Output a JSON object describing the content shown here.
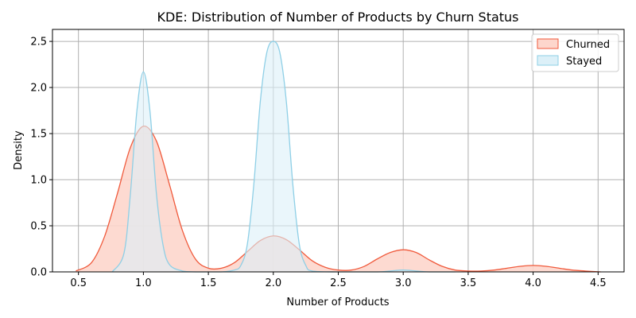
{
  "chart_data": {
    "type": "area",
    "title": "KDE: Distribution of Number of Products by Churn Status",
    "xlabel": "Number of Products",
    "ylabel": "Density",
    "xlim": [
      0.3,
      4.7
    ],
    "ylim": [
      0,
      2.63
    ],
    "xticks": [
      "0.5",
      "1.0",
      "1.5",
      "2.0",
      "2.5",
      "3.0",
      "3.5",
      "4.0",
      "4.5"
    ],
    "yticks": [
      "0.0",
      "0.5",
      "1.0",
      "1.5",
      "2.0",
      "2.5"
    ],
    "grid": true,
    "legend_position": "top-right",
    "series": [
      {
        "name": "Churned",
        "color": "#f05a3c",
        "fill": "#fdd6cc",
        "x": [
          0.48,
          0.6,
          0.7,
          0.8,
          0.9,
          1.0,
          1.1,
          1.2,
          1.3,
          1.4,
          1.5,
          1.6,
          1.7,
          1.8,
          1.9,
          2.0,
          2.1,
          2.2,
          2.3,
          2.4,
          2.5,
          2.6,
          2.7,
          2.8,
          2.9,
          3.0,
          3.1,
          3.2,
          3.3,
          3.4,
          3.5,
          3.6,
          3.7,
          3.8,
          3.9,
          4.0,
          4.1,
          4.2,
          4.3,
          4.4,
          4.52
        ],
        "y": [
          0.01,
          0.1,
          0.38,
          0.85,
          1.35,
          1.58,
          1.42,
          0.95,
          0.45,
          0.14,
          0.04,
          0.04,
          0.1,
          0.22,
          0.34,
          0.39,
          0.35,
          0.24,
          0.12,
          0.05,
          0.02,
          0.02,
          0.06,
          0.14,
          0.21,
          0.24,
          0.21,
          0.13,
          0.06,
          0.02,
          0.01,
          0.01,
          0.02,
          0.04,
          0.06,
          0.07,
          0.06,
          0.04,
          0.02,
          0.01,
          0.0
        ]
      },
      {
        "name": "Stayed",
        "color": "#8ecfe6",
        "fill": "#dcf0f8",
        "x": [
          0.76,
          0.85,
          0.9,
          0.95,
          1.0,
          1.05,
          1.1,
          1.15,
          1.2,
          1.3,
          1.4,
          1.5,
          1.6,
          1.7,
          1.75,
          1.8,
          1.85,
          1.9,
          1.95,
          2.0,
          2.05,
          2.1,
          2.15,
          2.2,
          2.25,
          2.3,
          2.5,
          2.8,
          2.9,
          3.0,
          3.1,
          3.2,
          3.4
        ],
        "y": [
          0.0,
          0.2,
          0.85,
          1.75,
          2.17,
          1.75,
          0.85,
          0.3,
          0.08,
          0.01,
          0.0,
          0.0,
          0.0,
          0.02,
          0.07,
          0.3,
          0.95,
          1.85,
          2.38,
          2.5,
          2.38,
          1.85,
          0.95,
          0.3,
          0.07,
          0.01,
          0.0,
          0.0,
          0.01,
          0.02,
          0.01,
          0.0,
          0.0
        ]
      }
    ]
  }
}
